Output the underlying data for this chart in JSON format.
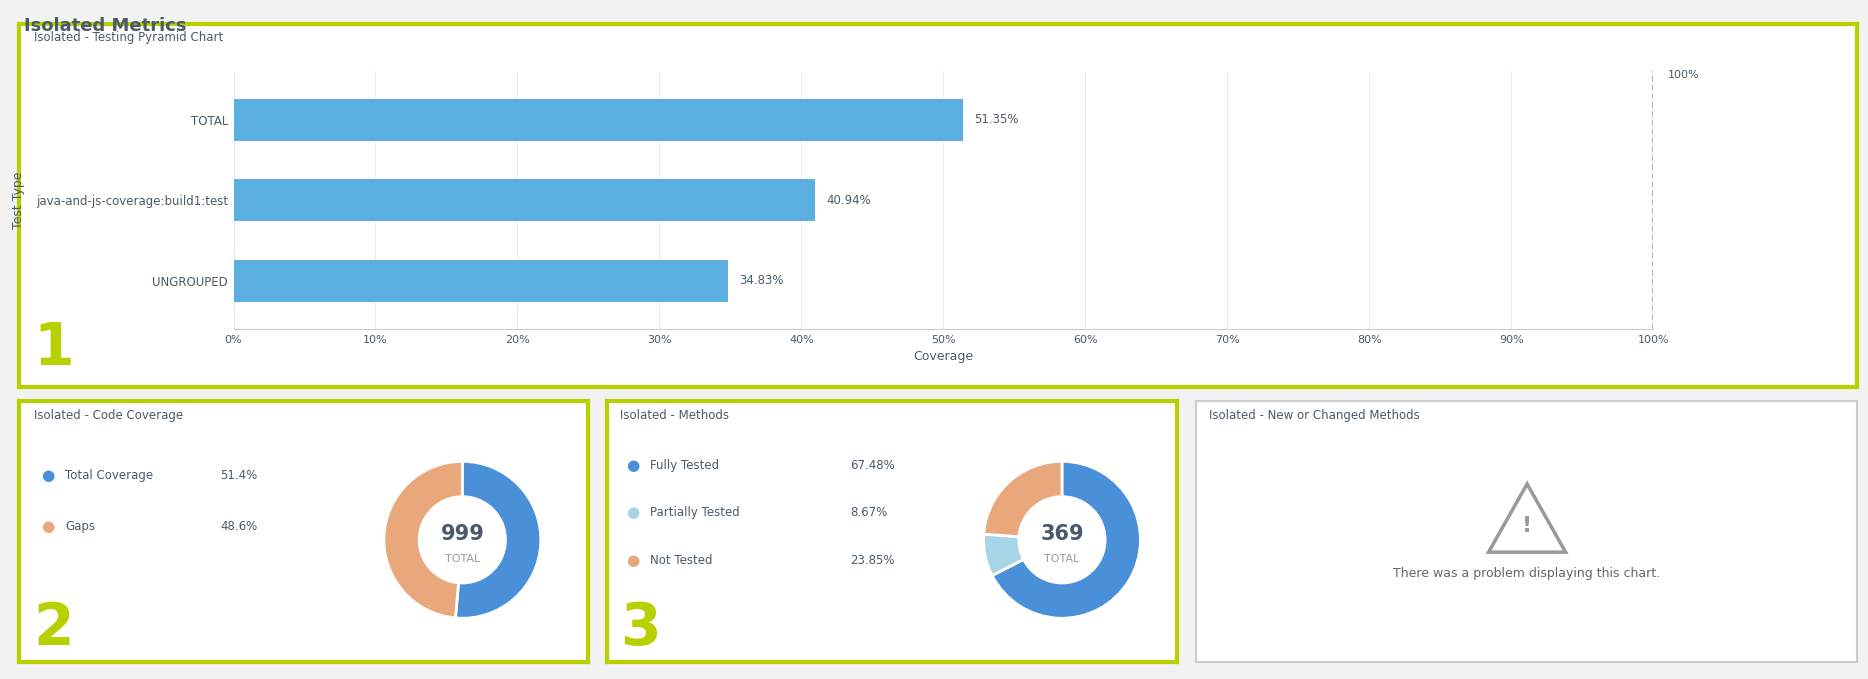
{
  "title": "Isolated Metrics",
  "title_color": "#4a5a6a",
  "background_color": "#f2f2f2",
  "panel_bg": "#ffffff",
  "border_color": "#b8d000",
  "border_color_light": "#cccccc",
  "bar_chart": {
    "subtitle": "Isolated - Testing Pyramid Chart",
    "categories": [
      "TOTAL",
      "java-and-js-coverage:build1:test",
      "UNGROUPED"
    ],
    "values": [
      51.35,
      40.94,
      34.83
    ],
    "bar_color": "#5aaee0",
    "xlabel": "Coverage",
    "ylabel": "Test Type",
    "xlim": [
      0,
      100
    ],
    "xticks": [
      0,
      10,
      20,
      30,
      40,
      50,
      60,
      70,
      80,
      90,
      100
    ],
    "xticklabels": [
      "0%",
      "10%",
      "20%",
      "30%",
      "40%",
      "50%",
      "60%",
      "70%",
      "80%",
      "90%",
      "100%"
    ],
    "value_labels": [
      "51.35%",
      "40.94%",
      "34.83%"
    ],
    "ref_label": "100%"
  },
  "donut1": {
    "subtitle": "Isolated - Code Coverage",
    "values": [
      51.4,
      48.6
    ],
    "colors": [
      "#4a90d9",
      "#e8a87c"
    ],
    "labels": [
      "Total Coverage",
      "Gaps"
    ],
    "pcts": [
      "51.4%",
      "48.6%"
    ],
    "center_text": "999",
    "center_sub": "TOTAL",
    "number": "2"
  },
  "donut2": {
    "subtitle": "Isolated - Methods",
    "values": [
      67.48,
      8.67,
      23.85
    ],
    "colors": [
      "#4a90d9",
      "#a8d4e8",
      "#e8a87c"
    ],
    "labels": [
      "Fully Tested",
      "Partially Tested",
      "Not Tested"
    ],
    "pcts": [
      "67.48%",
      "8.67%",
      "23.85%"
    ],
    "center_text": "369",
    "center_sub": "TOTAL",
    "number": "3"
  },
  "panel4": {
    "subtitle": "Isolated - New or Changed Methods",
    "error_text": "There was a problem displaying this chart."
  },
  "label_color": "#4a5a6a",
  "subtitle_color": "#4a5a6a",
  "number_color": "#b8d000"
}
